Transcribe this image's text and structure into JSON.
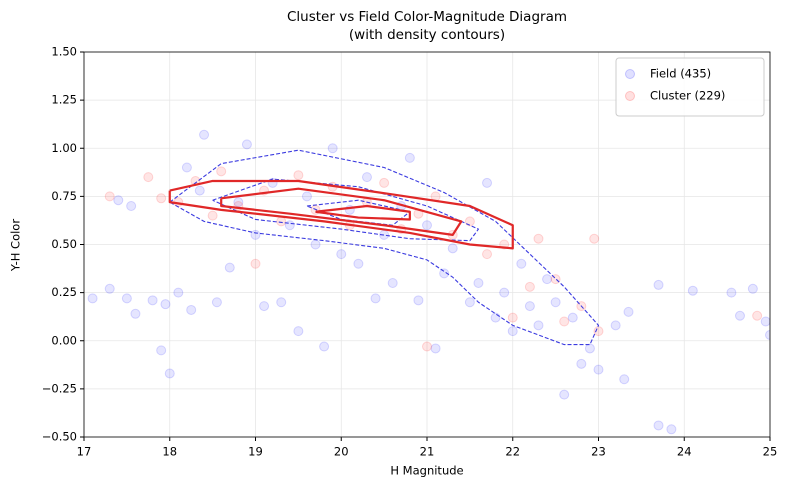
{
  "chart_data": {
    "type": "scatter",
    "title": "Cluster vs Field Color-Magnitude Diagram",
    "subtitle": "(with density contours)",
    "x_label": "H Magnitude",
    "y_label": "Y-H Color",
    "xlim": [
      17,
      25
    ],
    "ylim": [
      -0.5,
      1.5
    ],
    "xticks": [
      17,
      18,
      19,
      20,
      21,
      22,
      23,
      24,
      25
    ],
    "yticks": [
      {
        "value": -0.5,
        "label": "−0.50"
      },
      {
        "value": -0.25,
        "label": "−0.25"
      },
      {
        "value": 0,
        "label": "0.00"
      },
      {
        "value": 0.25,
        "label": "0.25"
      },
      {
        "value": 0.5,
        "label": "0.50"
      },
      {
        "value": 0.75,
        "label": "0.75"
      },
      {
        "value": 1,
        "label": "1.00"
      },
      {
        "value": 1.25,
        "label": "1.25"
      },
      {
        "value": 1.5,
        "label": "1.50"
      }
    ],
    "grid": true,
    "legend": "upper right",
    "series": [
      {
        "name": "Field (435)",
        "color": "#0000ff",
        "x": [
          17.1,
          17.3,
          17.4,
          17.55,
          17.5,
          17.6,
          17.8,
          17.9,
          17.95,
          18.0,
          18.1,
          18.2,
          18.25,
          18.35,
          18.4,
          18.55,
          18.7,
          18.8,
          18.9,
          19.0,
          19.1,
          19.2,
          19.3,
          19.4,
          19.5,
          19.6,
          19.7,
          19.8,
          19.9,
          20.0,
          20.1,
          20.2,
          20.3,
          20.4,
          20.5,
          20.6,
          20.7,
          20.8,
          20.9,
          21.0,
          21.1,
          21.2,
          21.3,
          21.5,
          21.6,
          21.7,
          21.8,
          21.9,
          22.0,
          22.1,
          22.2,
          22.3,
          22.4,
          22.5,
          22.6,
          22.7,
          22.8,
          22.9,
          23.0,
          23.2,
          23.35,
          23.3,
          23.7,
          23.7,
          23.85,
          24.1,
          24.55,
          24.65,
          24.8,
          24.95,
          25.0
        ],
        "values": [
          0.22,
          0.27,
          0.73,
          0.7,
          0.22,
          0.14,
          0.21,
          -0.05,
          0.19,
          -0.17,
          0.25,
          0.9,
          0.16,
          0.78,
          1.07,
          0.2,
          0.38,
          0.72,
          1.02,
          0.55,
          0.18,
          0.82,
          0.2,
          0.6,
          0.05,
          0.75,
          0.5,
          -0.03,
          1.0,
          0.45,
          0.68,
          0.4,
          0.85,
          0.22,
          0.55,
          0.3,
          0.7,
          0.95,
          0.21,
          0.6,
          -0.04,
          0.35,
          0.48,
          0.2,
          0.3,
          0.82,
          0.12,
          0.25,
          0.05,
          0.4,
          0.18,
          0.08,
          0.32,
          0.2,
          -0.28,
          0.12,
          -0.12,
          -0.04,
          -0.15,
          0.08,
          0.15,
          -0.2,
          0.29,
          -0.44,
          -0.46,
          0.26,
          0.25,
          0.13,
          0.27,
          0.1,
          0.03
        ]
      },
      {
        "name": "Cluster (229)",
        "color": "#ff0000",
        "x": [
          17.3,
          17.75,
          17.9,
          18.1,
          18.3,
          18.5,
          18.6,
          18.8,
          19.0,
          19.1,
          19.3,
          19.5,
          19.7,
          19.9,
          20.1,
          20.3,
          20.5,
          20.7,
          20.9,
          21.0,
          21.1,
          21.3,
          21.5,
          21.7,
          21.9,
          22.0,
          22.2,
          22.3,
          22.5,
          22.6,
          22.8,
          22.95,
          23.0,
          24.85
        ],
        "values": [
          0.75,
          0.85,
          0.74,
          0.72,
          0.83,
          0.65,
          0.88,
          0.7,
          0.4,
          0.78,
          0.62,
          0.86,
          0.68,
          0.8,
          0.6,
          0.72,
          0.82,
          0.58,
          0.66,
          -0.03,
          0.75,
          0.55,
          0.62,
          0.45,
          0.5,
          0.12,
          0.28,
          0.53,
          0.32,
          0.1,
          0.18,
          0.53,
          0.05,
          0.13
        ]
      }
    ],
    "contours": [
      {
        "color": "#3b3be0",
        "dashed": true,
        "x": [
          18.0,
          18.6,
          19.5,
          20.5,
          21.2,
          21.8,
          22.2,
          22.6,
          23.0,
          22.9,
          22.6,
          22.0,
          21.6,
          21.3,
          21.0,
          20.5,
          19.8,
          19.0,
          18.4,
          18.0
        ],
        "y": [
          0.72,
          0.92,
          0.99,
          0.9,
          0.77,
          0.62,
          0.45,
          0.28,
          0.08,
          -0.02,
          -0.02,
          0.08,
          0.2,
          0.33,
          0.42,
          0.48,
          0.52,
          0.56,
          0.62,
          0.72
        ]
      },
      {
        "color": "#3b3be0",
        "dashed": true,
        "x": [
          18.5,
          19.2,
          20.2,
          21.0,
          21.6,
          21.5,
          20.8,
          20.0,
          19.0,
          18.5
        ],
        "y": [
          0.73,
          0.84,
          0.8,
          0.7,
          0.58,
          0.52,
          0.53,
          0.58,
          0.63,
          0.73
        ]
      },
      {
        "color": "#3b3be0",
        "dashed": true,
        "x": [
          19.6,
          20.2,
          20.8,
          20.6,
          20.0,
          19.6
        ],
        "y": [
          0.7,
          0.73,
          0.67,
          0.6,
          0.63,
          0.7
        ]
      },
      {
        "color": "#e02828",
        "dashed": false,
        "x": [
          18.0,
          18.5,
          19.5,
          20.6,
          21.5,
          22.0,
          22.0,
          21.5,
          20.8,
          19.8,
          18.6,
          18.0,
          18.0
        ],
        "y": [
          0.78,
          0.83,
          0.83,
          0.76,
          0.7,
          0.6,
          0.48,
          0.5,
          0.56,
          0.62,
          0.68,
          0.72,
          0.78
        ]
      },
      {
        "color": "#e02828",
        "dashed": false,
        "x": [
          18.6,
          19.5,
          20.5,
          21.4,
          21.3,
          20.5,
          19.4,
          18.6,
          18.6
        ],
        "y": [
          0.74,
          0.79,
          0.73,
          0.62,
          0.55,
          0.6,
          0.66,
          0.7,
          0.74
        ]
      },
      {
        "color": "#e02828",
        "dashed": false,
        "x": [
          19.7,
          20.3,
          20.8,
          20.8,
          20.2,
          19.7
        ],
        "y": [
          0.67,
          0.7,
          0.67,
          0.63,
          0.64,
          0.67
        ]
      }
    ]
  }
}
